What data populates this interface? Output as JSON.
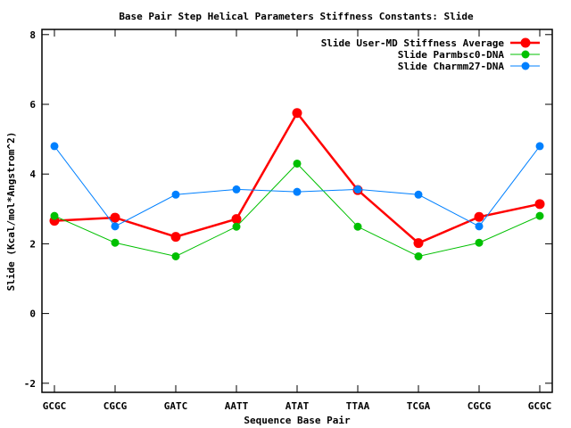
{
  "chart_data": {
    "type": "line",
    "title": "Base Pair Step Helical Parameters Stiffness Constants: Slide",
    "xlabel": "Sequence Base Pair",
    "ylabel": "Slide (Kcal/mol*Angstrom^2)",
    "ylim": [
      -2.3,
      8
    ],
    "yticks": [
      -2,
      0,
      2,
      4,
      6,
      8
    ],
    "categories": [
      "GCGC",
      "CGCG",
      "GATC",
      "AATT",
      "ATAT",
      "TTAA",
      "TCGA",
      "CGCG",
      "GCGC"
    ],
    "legend_position": "top-right",
    "grid": false,
    "series": [
      {
        "name": "Slide User-MD Stiffness Average",
        "color": "#ff0000",
        "values": [
          2.66,
          2.75,
          2.2,
          2.71,
          5.75,
          3.54,
          2.02,
          2.77,
          3.14
        ]
      },
      {
        "name": "Slide Parmbsc0-DNA",
        "color": "#00c000",
        "values": [
          2.8,
          2.03,
          1.64,
          2.49,
          4.3,
          2.49,
          1.64,
          2.03,
          2.8
        ]
      },
      {
        "name": "Slide Charmm27-DNA",
        "color": "#0080ff",
        "values": [
          4.8,
          2.5,
          3.41,
          3.56,
          3.49,
          3.56,
          3.41,
          2.5,
          4.8
        ]
      }
    ]
  }
}
